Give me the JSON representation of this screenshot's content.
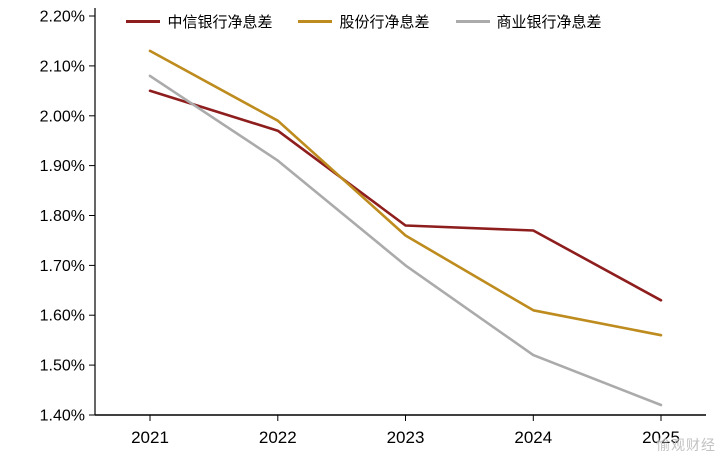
{
  "watermark": "愉观财经",
  "chart_data": {
    "type": "line",
    "title": "",
    "xlabel": "",
    "ylabel": "",
    "categories": [
      "2021",
      "2022",
      "2023",
      "2024",
      "2025"
    ],
    "series": [
      {
        "name": "中信银行净息差",
        "color": "#8E1D1D",
        "values": [
          2.05,
          1.97,
          1.78,
          1.77,
          1.63
        ]
      },
      {
        "name": "股份行净息差",
        "color": "#BE8C1E",
        "values": [
          2.13,
          1.99,
          1.76,
          1.61,
          1.56
        ]
      },
      {
        "name": "商业银行净息差",
        "color": "#ABABAB",
        "values": [
          2.08,
          1.91,
          1.7,
          1.52,
          1.42
        ]
      }
    ],
    "ylim": [
      1.4,
      2.2
    ],
    "ytick_step": 0.1,
    "yticks": [
      "2.20%",
      "2.10%",
      "2.00%",
      "1.90%",
      "1.80%",
      "1.70%",
      "1.60%",
      "1.50%",
      "1.40%"
    ],
    "grid": false,
    "legend_position": "top",
    "axis_color": "#000000",
    "label_color": "#000000"
  }
}
